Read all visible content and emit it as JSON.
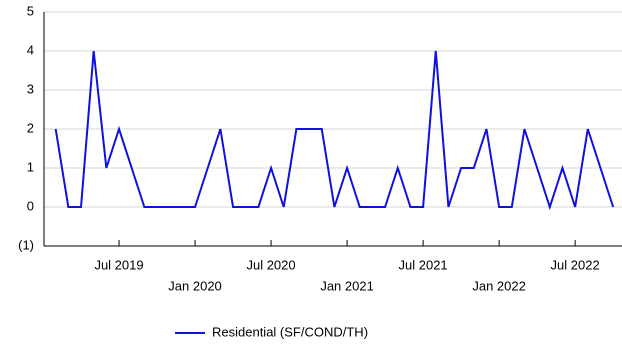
{
  "chart_data": {
    "type": "line",
    "x": [
      "2019-02",
      "2019-03",
      "2019-04",
      "2019-05",
      "2019-06",
      "2019-07",
      "2019-08",
      "2019-09",
      "2019-10",
      "2019-11",
      "2019-12",
      "2020-01",
      "2020-02",
      "2020-03",
      "2020-04",
      "2020-05",
      "2020-06",
      "2020-07",
      "2020-08",
      "2020-09",
      "2020-10",
      "2020-11",
      "2020-12",
      "2021-01",
      "2021-02",
      "2021-03",
      "2021-04",
      "2021-05",
      "2021-06",
      "2021-07",
      "2021-08",
      "2021-09",
      "2021-10",
      "2021-11",
      "2021-12",
      "2022-01",
      "2022-02",
      "2022-03",
      "2022-04",
      "2022-05",
      "2022-06",
      "2022-07",
      "2022-08",
      "2022-09",
      "2022-10"
    ],
    "series": [
      {
        "name": "Residential (SF/COND/TH)",
        "color": "#1010e0",
        "values": [
          2,
          0,
          0,
          4,
          1,
          2,
          1,
          0,
          0,
          0,
          0,
          0,
          1,
          2,
          0,
          0,
          0,
          1,
          0,
          2,
          2,
          2,
          0,
          1,
          0,
          0,
          0,
          1,
          0,
          0,
          4,
          0,
          1,
          1,
          2,
          0,
          0,
          2,
          1,
          0,
          1,
          0,
          2,
          1,
          0
        ]
      }
    ],
    "xticks": [
      {
        "value": "2019-07",
        "label": "Jul 2019"
      },
      {
        "value": "2020-01",
        "label": "Jan 2020"
      },
      {
        "value": "2020-07",
        "label": "Jul 2020"
      },
      {
        "value": "2021-01",
        "label": "Jan 2021"
      },
      {
        "value": "2021-07",
        "label": "Jul 2021"
      },
      {
        "value": "2022-01",
        "label": "Jan 2022"
      },
      {
        "value": "2022-07",
        "label": "Jul 2022"
      }
    ],
    "ylim": [
      -1,
      5
    ],
    "yticks": [
      {
        "value": -1,
        "label": "(1)"
      },
      0,
      1,
      2,
      3,
      4,
      5
    ],
    "grid": true
  }
}
